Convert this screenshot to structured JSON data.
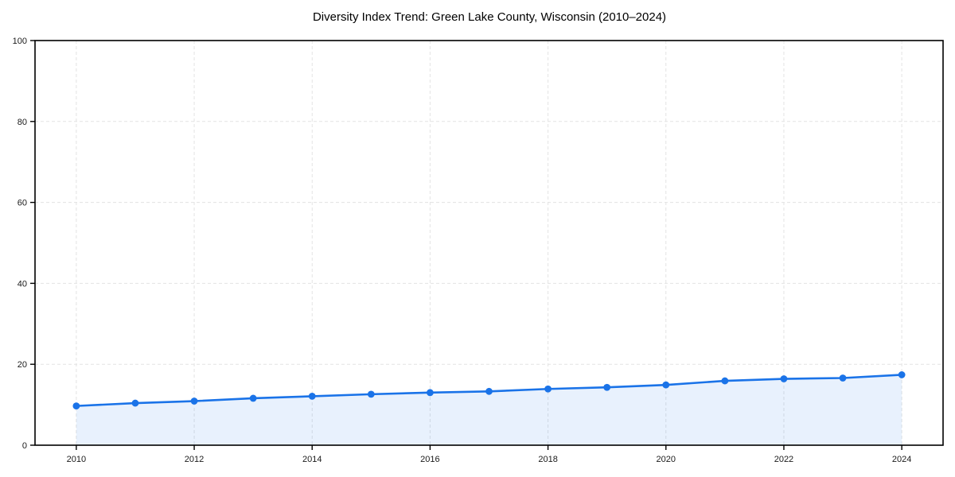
{
  "chart_data": {
    "type": "line",
    "title": "Diversity Index Trend: Green Lake County, Wisconsin (2010–2024)",
    "series_name": "Diversity Index",
    "x": [
      2010,
      2011,
      2012,
      2013,
      2014,
      2015,
      2016,
      2017,
      2018,
      2019,
      2020,
      2021,
      2022,
      2023,
      2024
    ],
    "values": [
      9.7,
      10.4,
      10.9,
      11.6,
      12.1,
      12.6,
      13.0,
      13.3,
      13.9,
      14.3,
      14.9,
      15.9,
      16.4,
      16.6,
      17.4
    ],
    "xlabel": "",
    "ylabel": "",
    "xlim": [
      2009.3,
      2024.7
    ],
    "ylim": [
      0,
      100
    ],
    "x_ticks": [
      2010,
      2012,
      2014,
      2016,
      2018,
      2020,
      2022,
      2024
    ],
    "y_ticks": [
      0,
      20,
      40,
      60,
      80,
      100
    ],
    "grid": "dashed",
    "legend_position": "none",
    "marker": "circle",
    "fill_under": true,
    "colors": {
      "line": "#1a73e8",
      "marker": "#1a73e8",
      "fill_under_line": "rgba(26,115,232,0.10)",
      "gridline": "#e3e3e3",
      "spine": "#000000",
      "tick_label": "#1a1a1a",
      "title": "#000000",
      "background": "#ffffff"
    }
  }
}
